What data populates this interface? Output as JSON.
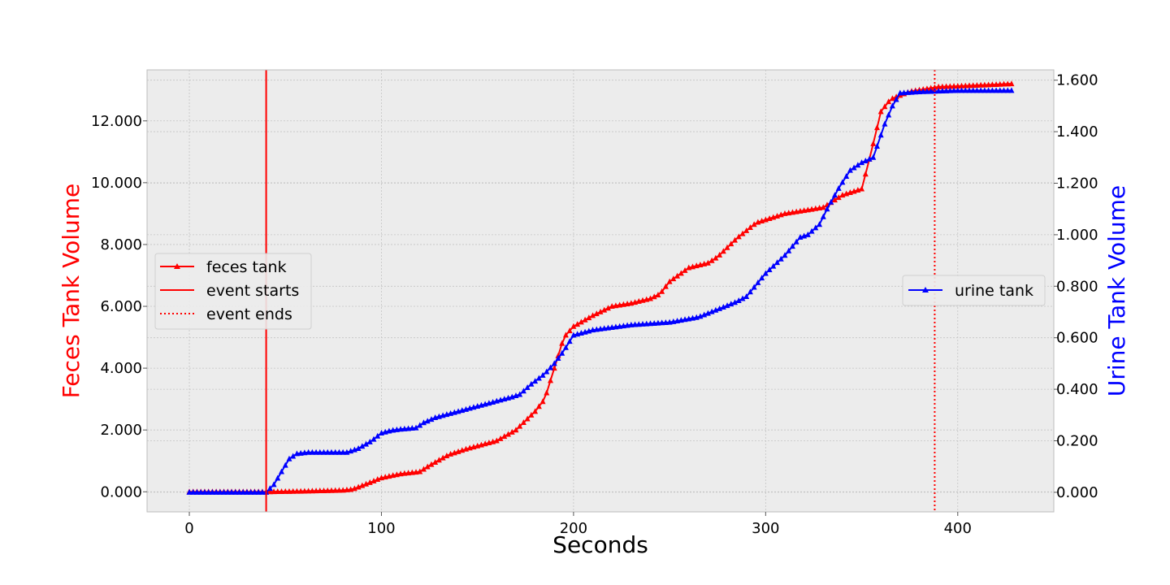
{
  "chart_data": {
    "type": "line",
    "xlabel": "Seconds",
    "ylabel_left": "Feces Tank Volume",
    "ylabel_right": "Urine Tank Volume",
    "xlim": [
      -22,
      450
    ],
    "ylim_left": [
      -0.65,
      13.65
    ],
    "ylim_right": [
      -0.076,
      1.64
    ],
    "x_ticks": [
      0,
      100,
      200,
      300,
      400
    ],
    "x_tick_labels": [
      "0",
      "100",
      "200",
      "300",
      "400"
    ],
    "y_left_ticks": [
      0,
      2,
      4,
      6,
      8,
      10,
      12
    ],
    "y_left_tick_labels": [
      "0.000",
      "2.000",
      "4.000",
      "6.000",
      "8.000",
      "10.000",
      "12.000"
    ],
    "y_right_ticks": [
      0,
      0.2,
      0.4,
      0.6,
      0.8,
      1.0,
      1.2,
      1.4,
      1.6
    ],
    "y_right_tick_labels": [
      "0.000",
      "0.200",
      "0.400",
      "0.600",
      "0.800",
      "1.000",
      "1.200",
      "1.400",
      "1.600"
    ],
    "grid": true,
    "colors": {
      "feces": "#ff0000",
      "urine": "#0000ff",
      "axes_bg": "#ececec"
    },
    "series": [
      {
        "name": "feces tank",
        "axis": "left",
        "marker": "triangle",
        "x": [
          0,
          40,
          60,
          80,
          85,
          90,
          100,
          110,
          120,
          125,
          135,
          145,
          160,
          170,
          180,
          185,
          190,
          195,
          200,
          210,
          220,
          230,
          240,
          245,
          250,
          260,
          270,
          275,
          285,
          295,
          310,
          320,
          330,
          340,
          350,
          355,
          360,
          365,
          375,
          390,
          410,
          428
        ],
        "values": [
          0,
          0,
          0.02,
          0.05,
          0.08,
          0.2,
          0.45,
          0.58,
          0.65,
          0.85,
          1.2,
          1.4,
          1.65,
          2.0,
          2.6,
          3.0,
          4.0,
          5.0,
          5.35,
          5.7,
          6.0,
          6.1,
          6.25,
          6.4,
          6.8,
          7.25,
          7.4,
          7.6,
          8.2,
          8.7,
          9.0,
          9.1,
          9.2,
          9.6,
          9.8,
          11.0,
          12.3,
          12.7,
          12.95,
          13.1,
          13.15,
          13.2
        ]
      },
      {
        "name": "urine tank",
        "axis": "right",
        "marker": "triangle",
        "x": [
          0,
          40,
          44,
          48,
          52,
          56,
          62,
          70,
          82,
          88,
          95,
          100,
          105,
          110,
          118,
          122,
          128,
          138,
          148,
          158,
          168,
          172,
          178,
          185,
          190,
          195,
          200,
          210,
          230,
          250,
          265,
          275,
          285,
          290,
          300,
          310,
          318,
          322,
          328,
          332,
          338,
          344,
          350,
          356,
          362,
          366,
          370,
          380,
          400,
          428
        ],
        "values": [
          0,
          0,
          0.03,
          0.08,
          0.13,
          0.15,
          0.155,
          0.155,
          0.155,
          0.17,
          0.2,
          0.23,
          0.24,
          0.245,
          0.25,
          0.27,
          0.29,
          0.31,
          0.33,
          0.35,
          0.37,
          0.38,
          0.42,
          0.46,
          0.5,
          0.55,
          0.61,
          0.63,
          0.65,
          0.66,
          0.68,
          0.71,
          0.74,
          0.76,
          0.85,
          0.92,
          0.99,
          1.0,
          1.04,
          1.1,
          1.18,
          1.25,
          1.28,
          1.3,
          1.43,
          1.5,
          1.55,
          1.555,
          1.56,
          1.56
        ]
      }
    ],
    "vlines": [
      {
        "name": "event starts",
        "x": 40,
        "style": "solid"
      },
      {
        "name": "event ends",
        "x": 388,
        "style": "dotted"
      }
    ],
    "legend_left": {
      "placement": "center-left",
      "items": [
        {
          "label": "feces tank",
          "style": "marker-line"
        },
        {
          "label": "event starts",
          "style": "solid"
        },
        {
          "label": "event ends",
          "style": "dotted"
        }
      ]
    },
    "legend_right": {
      "placement": "center-right",
      "items": [
        {
          "label": "urine tank",
          "style": "marker-line"
        }
      ]
    }
  }
}
